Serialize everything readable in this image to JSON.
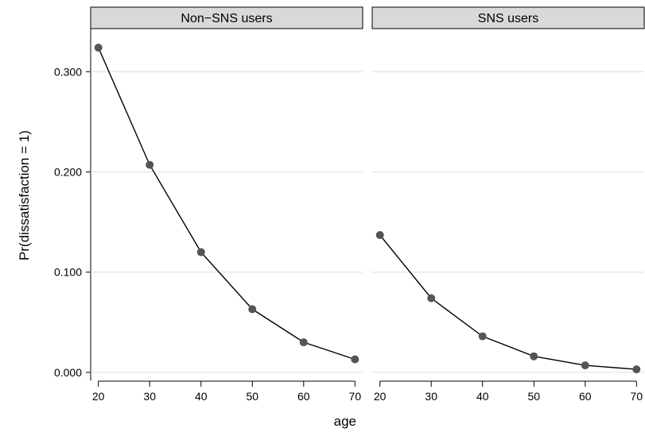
{
  "chart_data": {
    "type": "line",
    "ylabel": "Pr(dissatisfaction = 1)",
    "xlabel": "age",
    "x_ticks": [
      20,
      30,
      40,
      50,
      60,
      70
    ],
    "y_ticks": [
      0,
      0.1,
      0.2,
      0.3
    ],
    "y_tick_labels": [
      "0.000",
      "0.100",
      "0.200",
      "0.300"
    ],
    "xlim": [
      18.5,
      71.5
    ],
    "ylim": [
      -0.008,
      0.343
    ],
    "grid": true,
    "panels": [
      {
        "title": "Non−SNS users",
        "x": [
          20,
          30,
          40,
          50,
          60,
          70
        ],
        "y": [
          0.324,
          0.207,
          0.12,
          0.063,
          0.03,
          0.013
        ]
      },
      {
        "title": "SNS users",
        "x": [
          20,
          30,
          40,
          50,
          60,
          70
        ],
        "y": [
          0.137,
          0.074,
          0.036,
          0.016,
          0.007,
          0.003
        ]
      }
    ],
    "colors": {
      "strip_fill": "#d9d9d9",
      "point": "#555555",
      "line": "#000000",
      "grid": "#dedede"
    }
  }
}
